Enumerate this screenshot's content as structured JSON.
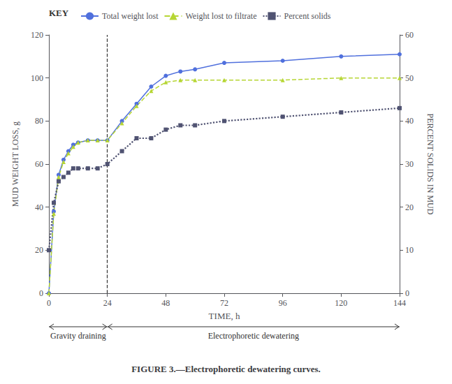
{
  "chart_data": {
    "type": "line",
    "title": "FIGURE 3.—Electrophoretic dewatering curves.",
    "x_label": "TIME, h",
    "y_label": "MUD WEIGHT LOSS, g",
    "y2_label": "PERCENT SOLIDS IN MUD",
    "legend_title": "KEY",
    "legend": "top",
    "grid": false,
    "x": [
      0,
      2,
      4,
      6,
      8,
      10,
      12,
      16,
      20,
      24,
      30,
      36,
      42,
      48,
      54,
      60,
      72,
      96,
      120,
      144
    ],
    "series": [
      {
        "name": "Total weight lost",
        "marker": "circle",
        "line_style": "solid",
        "axis": "y",
        "values": [
          0,
          38,
          55,
          62,
          66,
          69,
          70,
          71,
          71,
          71,
          80,
          88,
          96,
          101,
          103,
          104,
          107,
          108,
          110,
          111
        ]
      },
      {
        "name": "Weight lost to filtrate",
        "marker": "triangle",
        "line_style": "dashed",
        "axis": "y",
        "values": [
          0,
          37,
          54,
          61,
          65,
          68,
          70,
          71,
          71,
          71,
          79,
          87,
          94,
          98,
          99,
          99,
          99,
          99,
          100,
          100
        ]
      },
      {
        "name": "Percent solids",
        "marker": "square",
        "line_style": "dotted",
        "axis": "y2",
        "values": [
          10,
          21,
          26,
          27,
          28,
          29,
          29,
          29,
          29,
          30,
          33,
          36,
          36,
          38,
          39,
          39,
          40,
          41,
          42,
          43
        ]
      }
    ],
    "xlim": [
      0,
      144
    ],
    "xticks": [
      0,
      24,
      48,
      72,
      96,
      120,
      144
    ],
    "ylim": [
      0,
      120
    ],
    "yticks": [
      0,
      20,
      40,
      60,
      80,
      100,
      120
    ],
    "y2lim": [
      0,
      60
    ],
    "y2ticks": [
      0,
      10,
      20,
      30,
      40,
      50,
      60
    ],
    "vlines": [
      24
    ],
    "annotations": [
      {
        "text": "Gravity draining",
        "x": [
          0,
          24
        ]
      },
      {
        "text": "Electrophoretic dewatering",
        "x": [
          24,
          144
        ]
      }
    ]
  }
}
